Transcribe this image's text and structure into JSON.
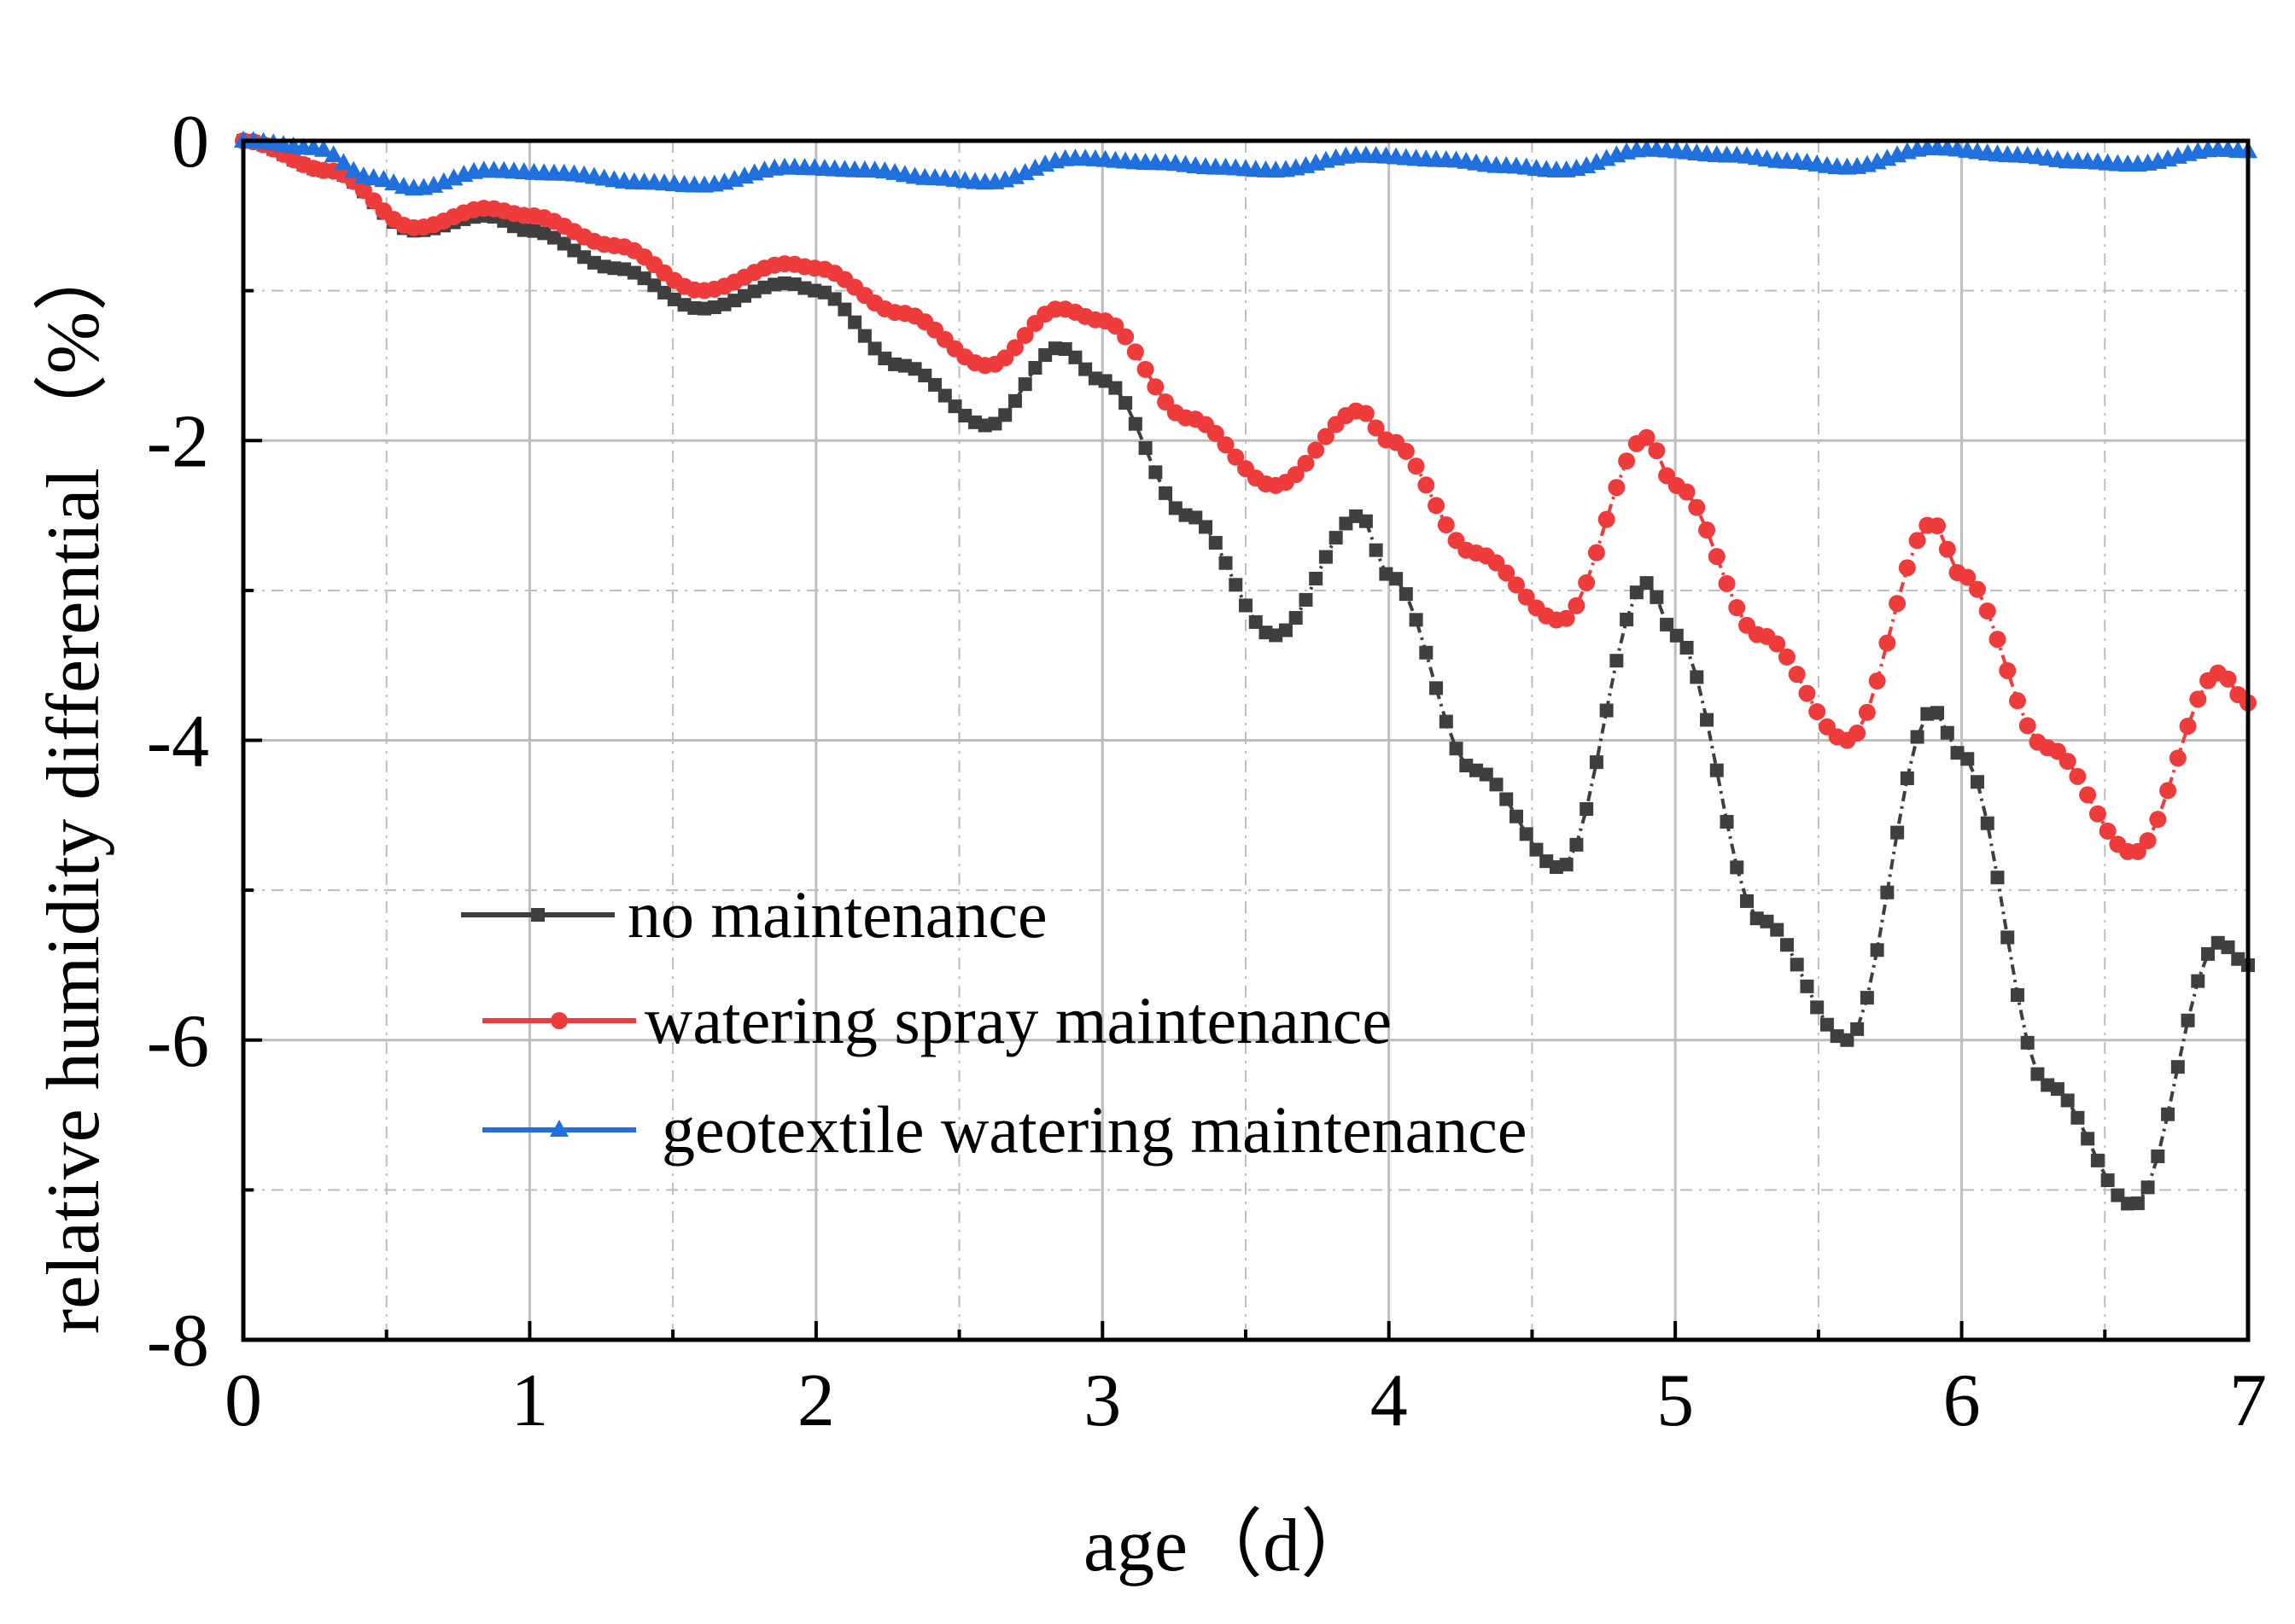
{
  "chart_data": {
    "type": "line",
    "xlabel": "age（d）",
    "ylabel": "relative humidity differential （%）",
    "xlim": [
      0,
      7
    ],
    "ylim": [
      -8,
      0
    ],
    "x_ticks": [
      "0",
      "1",
      "2",
      "3",
      "4",
      "5",
      "6",
      "7"
    ],
    "y_ticks": [
      "0",
      "-2",
      "-4",
      "-6",
      "-8"
    ],
    "grid": true,
    "legend_position": "lower-left",
    "series": [
      {
        "name": "no maintenance",
        "color": "#3f3f3f",
        "marker": "square",
        "x": [
          0,
          0.3,
          0.6,
          0.85,
          1.0,
          1.3,
          1.6,
          1.9,
          2.0,
          2.3,
          2.6,
          2.85,
          3.0,
          3.3,
          3.6,
          3.9,
          4.0,
          4.3,
          4.6,
          4.9,
          5.0,
          5.3,
          5.6,
          5.9,
          6.0,
          6.3,
          6.6,
          6.9,
          7.0
        ],
        "y": [
          0,
          -0.2,
          -0.6,
          -0.5,
          -0.6,
          -0.85,
          -1.12,
          -0.95,
          -1.0,
          -1.5,
          -1.9,
          -1.38,
          -1.6,
          -2.5,
          -3.3,
          -2.5,
          -2.9,
          -4.2,
          -4.85,
          -2.95,
          -3.3,
          -5.2,
          -6.0,
          -3.8,
          -4.1,
          -6.3,
          -7.1,
          -5.35,
          -5.5
        ]
      },
      {
        "name": "watering spray maintenance",
        "color": "#ee3b3b",
        "marker": "circle",
        "x": [
          0,
          0.3,
          0.6,
          0.85,
          1.0,
          1.3,
          1.6,
          1.9,
          2.0,
          2.3,
          2.6,
          2.85,
          3.0,
          3.3,
          3.6,
          3.9,
          4.0,
          4.3,
          4.6,
          4.9,
          5.0,
          5.3,
          5.6,
          5.9,
          6.0,
          6.3,
          6.6,
          6.9,
          7.0
        ],
        "y": [
          0,
          -0.2,
          -0.58,
          -0.45,
          -0.5,
          -0.7,
          -1.0,
          -0.82,
          -0.85,
          -1.15,
          -1.5,
          -1.12,
          -1.2,
          -1.85,
          -2.3,
          -1.8,
          -2.0,
          -2.75,
          -3.2,
          -1.98,
          -2.3,
          -3.3,
          -4.0,
          -2.55,
          -2.9,
          -4.05,
          -4.75,
          -3.55,
          -3.75
        ]
      },
      {
        "name": "geotextile watering maintenance",
        "color": "#1f6fdc",
        "marker": "triangle",
        "x": [
          0,
          0.25,
          0.45,
          0.6,
          0.85,
          1.1,
          1.4,
          1.6,
          1.9,
          2.2,
          2.4,
          2.6,
          2.9,
          3.2,
          3.4,
          3.6,
          3.9,
          4.2,
          4.4,
          4.6,
          4.9,
          5.2,
          5.4,
          5.6,
          5.9,
          6.2,
          6.4,
          6.6,
          6.9,
          7.0
        ],
        "y": [
          0,
          -0.05,
          -0.25,
          -0.32,
          -0.2,
          -0.22,
          -0.28,
          -0.3,
          -0.18,
          -0.2,
          -0.25,
          -0.28,
          -0.12,
          -0.15,
          -0.18,
          -0.2,
          -0.1,
          -0.13,
          -0.17,
          -0.2,
          -0.06,
          -0.1,
          -0.14,
          -0.18,
          -0.05,
          -0.1,
          -0.14,
          -0.16,
          -0.06,
          -0.07
        ]
      }
    ]
  }
}
